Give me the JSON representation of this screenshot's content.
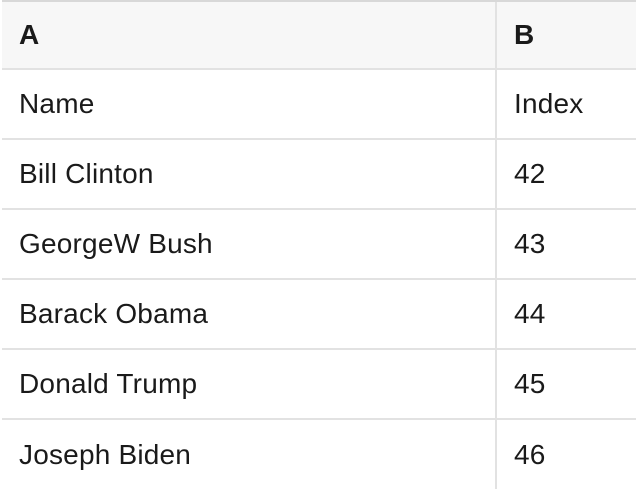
{
  "colors": {
    "header_bg": "#f7f7f7",
    "row_bg": "#ffffff",
    "border_top": "#d8d8d8",
    "border_inner": "#e2e2e2",
    "text": "#1a1a1a"
  },
  "table": {
    "column_headers": [
      {
        "label": "A"
      },
      {
        "label": "B"
      }
    ],
    "rows": [
      {
        "cells": [
          "Name",
          "Index"
        ]
      },
      {
        "cells": [
          "Bill Clinton",
          42
        ]
      },
      {
        "cells": [
          "GeorgeW Bush",
          43
        ]
      },
      {
        "cells": [
          "Barack Obama",
          44
        ]
      },
      {
        "cells": [
          "Donald Trump",
          45
        ]
      },
      {
        "cells": [
          "Joseph Biden",
          46
        ]
      }
    ]
  }
}
